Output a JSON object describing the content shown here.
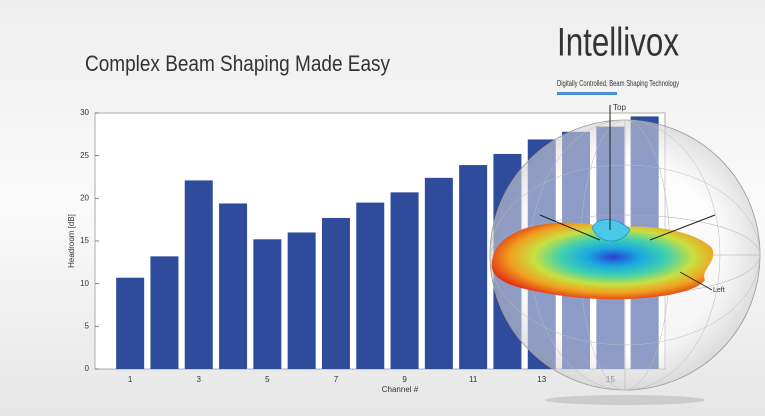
{
  "chart_data": {
    "type": "bar",
    "title": "Complex Beam Shaping Made Easy",
    "brand": "Intellivox",
    "tagline": "Digitally Controlled, Beam Shaping Technology",
    "x_label": "Channel #",
    "y_label": "Headroom [dB]",
    "categories": [
      "1",
      null,
      "3",
      null,
      "5",
      null,
      "7",
      null,
      "9",
      null,
      "11",
      null,
      "13",
      null,
      "15",
      null
    ],
    "values": [
      10.7,
      13.2,
      22.1,
      19.4,
      15.2,
      16.0,
      17.7,
      19.5,
      20.7,
      22.4,
      23.9,
      25.2,
      26.9,
      27.8,
      28.4,
      29.6
    ],
    "color": "#2f4b9c",
    "ylim": [
      0,
      30
    ],
    "yticks": [
      0,
      5,
      10,
      15,
      20,
      25,
      30
    ],
    "grid": false,
    "annotations": [
      "Top",
      "Left"
    ]
  }
}
